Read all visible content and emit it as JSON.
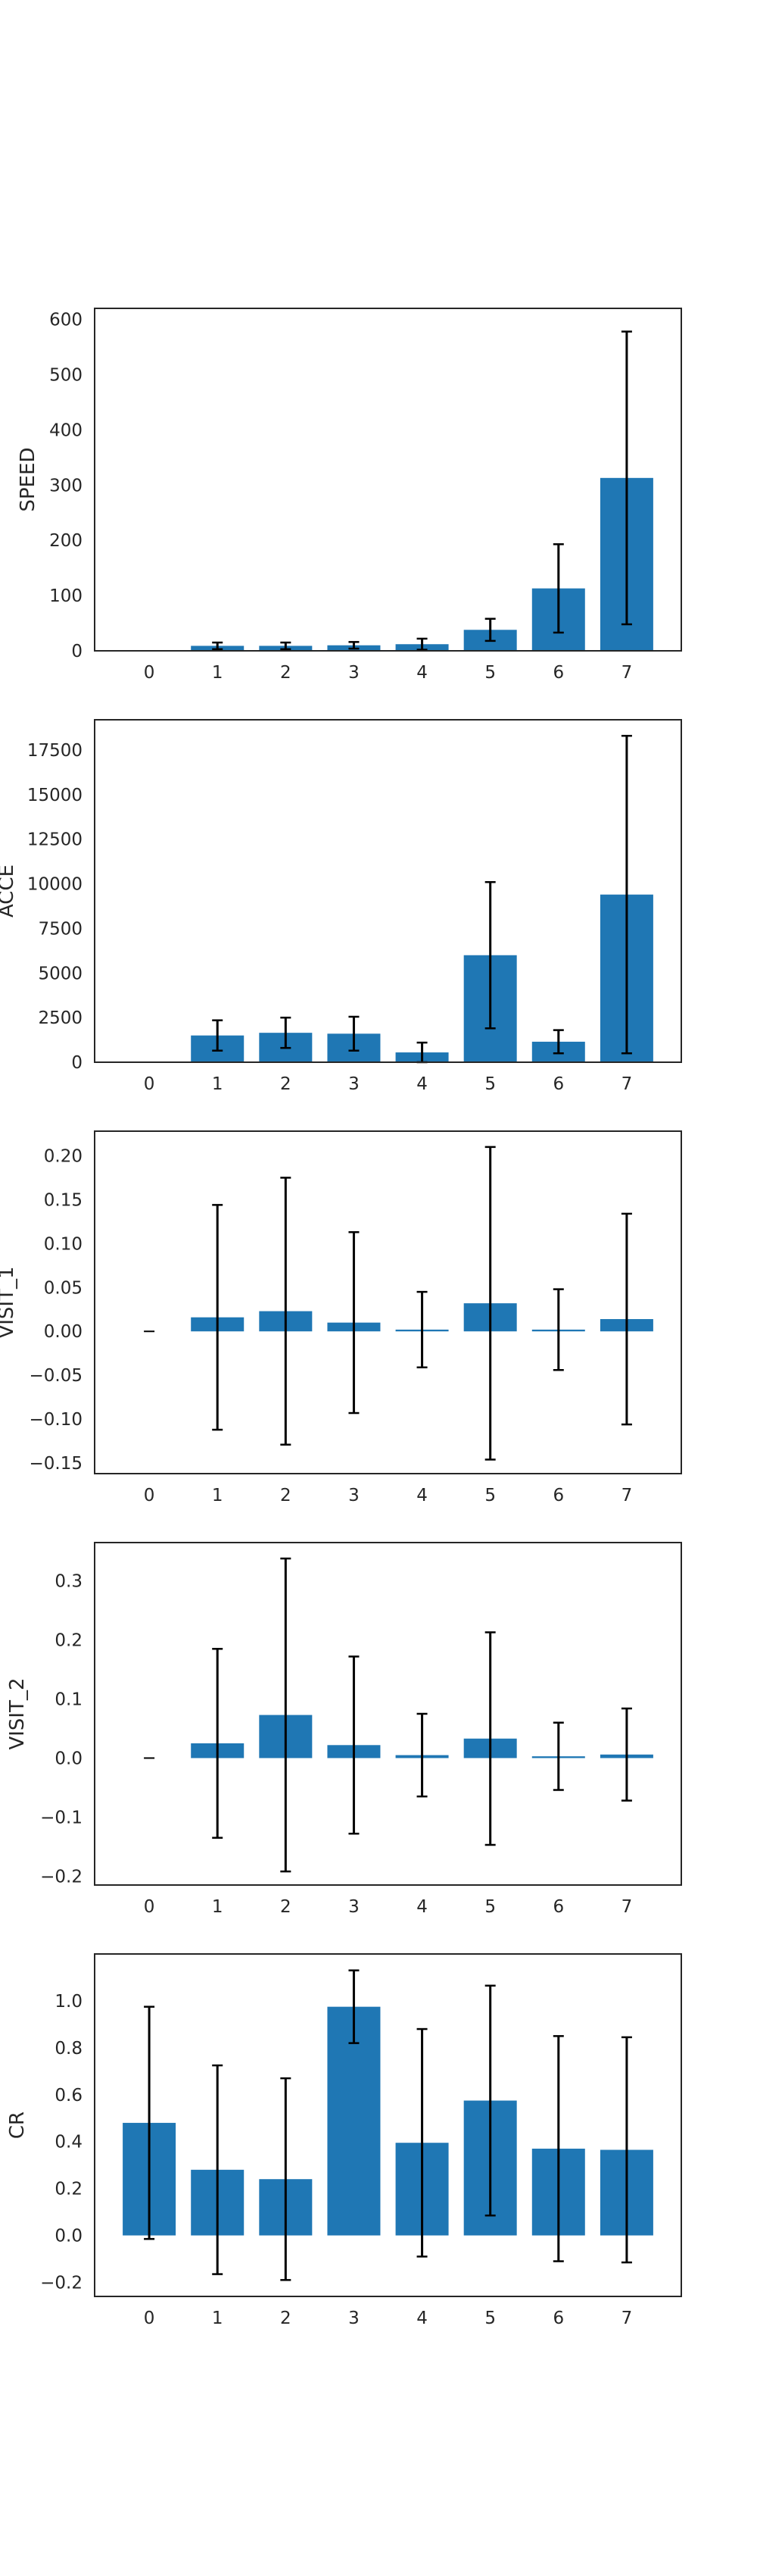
{
  "figure": {
    "background": "#ffffff"
  },
  "style": {
    "bar_color": "#1f77b4",
    "error_color": "#000000",
    "frame_color": "#262626"
  },
  "chart_data": [
    {
      "type": "bar",
      "ylabel": "SPEED",
      "categories": [
        "0",
        "1",
        "2",
        "3",
        "4",
        "5",
        "6",
        "7"
      ],
      "values": [
        0,
        9,
        9,
        10,
        12,
        38,
        113,
        313
      ],
      "errors": [
        0,
        6,
        6,
        6,
        10,
        20,
        80,
        265
      ],
      "ylim": [
        0,
        620
      ],
      "yticks": [
        0,
        100,
        200,
        300,
        400,
        500,
        600
      ],
      "ytick_labels": [
        "0",
        "100",
        "200",
        "300",
        "400",
        "500",
        "600"
      ],
      "grid": false,
      "legend": "none"
    },
    {
      "type": "bar",
      "ylabel": "ACCE",
      "categories": [
        "0",
        "1",
        "2",
        "3",
        "4",
        "5",
        "6",
        "7"
      ],
      "values": [
        0,
        1500,
        1650,
        1600,
        550,
        6000,
        1150,
        9400
      ],
      "errors": [
        0,
        850,
        850,
        950,
        550,
        4100,
        650,
        8900
      ],
      "ylim": [
        0,
        19200
      ],
      "yticks": [
        0,
        2500,
        5000,
        7500,
        10000,
        12500,
        15000,
        17500
      ],
      "ytick_labels": [
        "0",
        "2500",
        "5000",
        "7500",
        "10000",
        "12500",
        "15000",
        "17500"
      ],
      "grid": false,
      "legend": "none"
    },
    {
      "type": "bar",
      "ylabel": "VISIT_1",
      "categories": [
        "0",
        "1",
        "2",
        "3",
        "4",
        "5",
        "6",
        "7"
      ],
      "values": [
        0,
        0.016,
        0.023,
        0.01,
        0.002,
        0.032,
        0.002,
        0.014
      ],
      "errors": [
        0,
        0.128,
        0.152,
        0.103,
        0.043,
        0.178,
        0.046,
        0.12
      ],
      "ylim": [
        -0.162,
        0.228
      ],
      "yticks": [
        -0.15,
        -0.1,
        -0.05,
        0.0,
        0.05,
        0.1,
        0.15,
        0.2
      ],
      "ytick_labels": [
        "−0.15",
        "−0.10",
        "−0.05",
        "0.00",
        "0.05",
        "0.10",
        "0.15",
        "0.20"
      ],
      "grid": false,
      "legend": "none"
    },
    {
      "type": "bar",
      "ylabel": "VISIT_2",
      "categories": [
        "0",
        "1",
        "2",
        "3",
        "4",
        "5",
        "6",
        "7"
      ],
      "values": [
        0,
        0.025,
        0.073,
        0.022,
        0.005,
        0.033,
        0.003,
        0.006
      ],
      "errors": [
        0,
        0.16,
        0.265,
        0.15,
        0.07,
        0.18,
        0.057,
        0.078
      ],
      "ylim": [
        -0.215,
        0.365
      ],
      "yticks": [
        -0.2,
        -0.1,
        0.0,
        0.1,
        0.2,
        0.3
      ],
      "ytick_labels": [
        "−0.2",
        "−0.1",
        "0.0",
        "0.1",
        "0.2",
        "0.3"
      ],
      "grid": false,
      "legend": "none"
    },
    {
      "type": "bar",
      "ylabel": "CR",
      "categories": [
        "0",
        "1",
        "2",
        "3",
        "4",
        "5",
        "6",
        "7"
      ],
      "values": [
        0.48,
        0.28,
        0.24,
        0.975,
        0.395,
        0.575,
        0.37,
        0.365
      ],
      "errors": [
        0.495,
        0.445,
        0.43,
        0.155,
        0.485,
        0.49,
        0.48,
        0.48
      ],
      "ylim": [
        -0.26,
        1.2
      ],
      "yticks": [
        -0.2,
        0.0,
        0.2,
        0.4,
        0.6,
        0.8,
        1.0
      ],
      "ytick_labels": [
        "−0.2",
        "0.0",
        "0.2",
        "0.4",
        "0.6",
        "0.8",
        "1.0"
      ],
      "grid": false,
      "legend": "none"
    }
  ]
}
